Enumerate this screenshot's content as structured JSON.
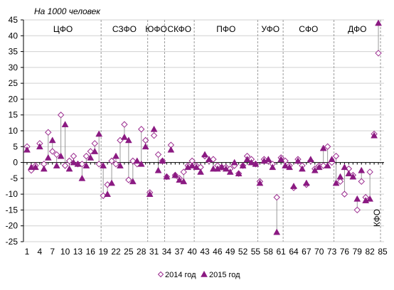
{
  "chart_data": {
    "type": "scatter",
    "unit_label": "На 1000 человек",
    "ylim": [
      -25,
      45
    ],
    "yticks": [
      -25,
      -20,
      -15,
      -10,
      -5,
      0,
      5,
      10,
      15,
      20,
      25,
      30,
      35,
      40,
      45
    ],
    "xlim": [
      1,
      85
    ],
    "xticks": [
      1,
      4,
      7,
      10,
      13,
      16,
      19,
      22,
      25,
      28,
      31,
      34,
      37,
      40,
      43,
      46,
      49,
      52,
      55,
      58,
      61,
      64,
      67,
      70,
      73,
      76,
      79,
      82,
      85
    ],
    "grid": "horizontal",
    "legend_position": "bottom",
    "regions": [
      {
        "label": "ЦФО",
        "start": 1,
        "end": 18
      },
      {
        "label": "СЗФО",
        "start": 19,
        "end": 29
      },
      {
        "label": "ЮФО",
        "start": 30,
        "end": 33
      },
      {
        "label": "СКФО",
        "start": 34,
        "end": 40
      },
      {
        "label": "ПФО",
        "start": 41,
        "end": 55
      },
      {
        "label": "УФО",
        "start": 56,
        "end": 61
      },
      {
        "label": "СФО",
        "start": 62,
        "end": 73
      },
      {
        "label": "ДФО",
        "start": 74,
        "end": 84
      },
      {
        "label": "КФО",
        "start": 85,
        "end": 85
      }
    ],
    "series": [
      {
        "name": "2014 год",
        "marker": "diamond-open",
        "color": "#9b2d8f",
        "values": [
          5,
          -2.5,
          -1,
          6,
          -0.5,
          9.5,
          3.5,
          2.5,
          15,
          -1,
          0.5,
          2,
          -0.5,
          -0.5,
          2,
          3.5,
          6,
          -0.5,
          -10.5,
          -7,
          0.5,
          -0.5,
          7,
          12,
          -5.5,
          0.5,
          -0.5,
          10.5,
          7,
          -9.5,
          8.5,
          2.5,
          0.5,
          -4.5,
          5.5,
          -4,
          -5,
          -3,
          -1,
          0.5,
          -1,
          -1.5,
          2,
          0.5,
          1,
          -1,
          -1.5,
          -1.5,
          -2,
          -1,
          -3.5,
          -1,
          2,
          1,
          -0.5,
          -6,
          1,
          0.5,
          -0.5,
          -11,
          1.5,
          0.5,
          -1,
          -8,
          1,
          -1,
          -7,
          0.5,
          -2,
          -1,
          -1,
          5,
          0,
          2,
          -6,
          -10,
          -2,
          -4,
          -15,
          -6,
          -11,
          -3,
          9,
          34.5
        ],
        "x": [
          1,
          2,
          3,
          4,
          5,
          6,
          7,
          8,
          9,
          10,
          11,
          12,
          13,
          14,
          15,
          16,
          17,
          18,
          19,
          20,
          21,
          22,
          23,
          24,
          25,
          26,
          27,
          28,
          29,
          30,
          31,
          32,
          33,
          34,
          35,
          36,
          37,
          38,
          39,
          40,
          41,
          42,
          43,
          44,
          45,
          46,
          47,
          48,
          49,
          50,
          51,
          52,
          53,
          54,
          55,
          56,
          57,
          58,
          59,
          60,
          61,
          62,
          63,
          64,
          65,
          66,
          67,
          68,
          69,
          70,
          71,
          72,
          73,
          74,
          75,
          76,
          77,
          78,
          79,
          80,
          81,
          82,
          83,
          84
        ]
      },
      {
        "name": "2015 год",
        "marker": "triangle-filled",
        "color": "#8b1a82",
        "values": [
          4,
          -1.5,
          -1.5,
          5,
          -2,
          1.5,
          7,
          -1,
          2,
          12,
          -2,
          0,
          -0.5,
          -5,
          -1,
          1.5,
          3.5,
          9,
          -1,
          -10,
          -6.5,
          2,
          -1,
          8,
          7,
          -6,
          0.5,
          -0.5,
          5,
          -10,
          10.5,
          -2.5,
          0.5,
          -4.5,
          4,
          -4,
          -5.5,
          -6,
          -1.5,
          -1,
          -1.5,
          -3,
          2.5,
          1,
          -2,
          -2,
          -1.5,
          -2,
          -3,
          0,
          -3.5,
          -1,
          1,
          0,
          -0.5,
          -6.5,
          0.5,
          1,
          -1.5,
          -22,
          1,
          -1,
          -1.5,
          -7.5,
          0.5,
          -2,
          -6.5,
          1,
          -2.5,
          -1.5,
          4.5,
          -1,
          1,
          -6.5,
          -4.5,
          -1.5,
          -3.5,
          -4.5,
          -11.5,
          -2.5,
          -12,
          -11.5,
          8.5,
          44
        ],
        "x": [
          1,
          2,
          3,
          4,
          5,
          6,
          7,
          8,
          9,
          10,
          11,
          12,
          13,
          14,
          15,
          16,
          17,
          18,
          19,
          20,
          21,
          22,
          23,
          24,
          25,
          26,
          27,
          28,
          29,
          30,
          31,
          32,
          33,
          34,
          35,
          36,
          37,
          38,
          39,
          40,
          41,
          42,
          43,
          44,
          45,
          46,
          47,
          48,
          49,
          50,
          51,
          52,
          53,
          54,
          55,
          56,
          57,
          58,
          59,
          60,
          61,
          62,
          63,
          64,
          65,
          66,
          67,
          68,
          69,
          70,
          71,
          72,
          73,
          74,
          75,
          76,
          77,
          78,
          79,
          80,
          81,
          82,
          83,
          84
        ]
      }
    ]
  }
}
